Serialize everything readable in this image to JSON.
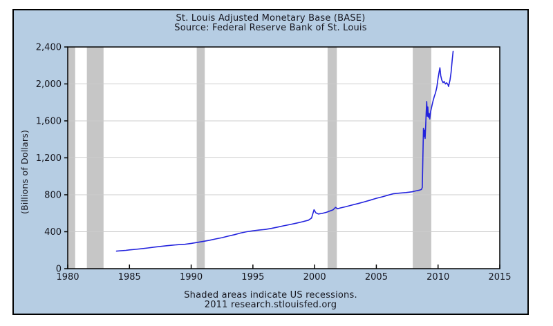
{
  "header": {
    "title_line1": "St. Louis Adjusted Monetary Base (BASE)",
    "title_line2": "Source: Federal Reserve Bank of St. Louis"
  },
  "axes": {
    "y_label": "(Billions of Dollars)"
  },
  "footer": {
    "line1": "Shaded areas indicate US recessions.",
    "line2": "2011 research.stlouisfed.org"
  },
  "colors": {
    "background": "#b6cde3",
    "plot_background": "#ffffff",
    "line": "#2222dd",
    "recession_band": "#c6c6c6",
    "gridline": "#cccccc",
    "text": "#16161e",
    "border": "#000000"
  },
  "chart_data": {
    "type": "line",
    "title": "St. Louis Adjusted Monetary Base (BASE)",
    "subtitle": "Source: Federal Reserve Bank of St. Louis",
    "xlabel": "",
    "ylabel": "(Billions of Dollars)",
    "xlim": [
      1980,
      2015
    ],
    "ylim": [
      0,
      2400
    ],
    "x_ticks": [
      1980,
      1985,
      1990,
      1995,
      2000,
      2005,
      2010,
      2015
    ],
    "x_tick_labels": [
      "1980",
      "1985",
      "1990",
      "1995",
      "2000",
      "2005",
      "2010",
      "2015"
    ],
    "y_ticks": [
      0,
      400,
      800,
      1200,
      1600,
      2000,
      2400
    ],
    "y_tick_labels": [
      "0",
      "400",
      "800",
      "1,200",
      "1,600",
      "2,000",
      "2,400"
    ],
    "grid": "horizontal",
    "legend": "none",
    "annotation": "Shaded areas indicate US recessions.",
    "recessions": [
      [
        1980.05,
        1980.6
      ],
      [
        1981.55,
        1982.9
      ],
      [
        1990.45,
        1991.1
      ],
      [
        2001.05,
        2001.8
      ],
      [
        2007.95,
        2009.45
      ]
    ],
    "series": [
      {
        "name": "St. Louis Adjusted Monetary Base",
        "points": [
          [
            1983.95,
            190
          ],
          [
            1984.3,
            194
          ],
          [
            1984.7,
            198
          ],
          [
            1985.0,
            203
          ],
          [
            1985.5,
            209
          ],
          [
            1986.0,
            216
          ],
          [
            1986.5,
            224
          ],
          [
            1987.0,
            233
          ],
          [
            1987.5,
            241
          ],
          [
            1988.0,
            248
          ],
          [
            1988.5,
            255
          ],
          [
            1989.0,
            260
          ],
          [
            1989.5,
            264
          ],
          [
            1990.0,
            274
          ],
          [
            1990.5,
            285
          ],
          [
            1991.0,
            296
          ],
          [
            1991.5,
            308
          ],
          [
            1992.0,
            322
          ],
          [
            1992.5,
            336
          ],
          [
            1993.0,
            352
          ],
          [
            1993.5,
            368
          ],
          [
            1994.0,
            386
          ],
          [
            1994.5,
            400
          ],
          [
            1995.0,
            410
          ],
          [
            1995.5,
            418
          ],
          [
            1996.0,
            425
          ],
          [
            1996.5,
            436
          ],
          [
            1997.0,
            450
          ],
          [
            1997.5,
            464
          ],
          [
            1998.0,
            478
          ],
          [
            1998.5,
            492
          ],
          [
            1999.0,
            508
          ],
          [
            1999.5,
            525
          ],
          [
            1999.75,
            548
          ],
          [
            1999.95,
            638
          ],
          [
            2000.1,
            605
          ],
          [
            2000.3,
            592
          ],
          [
            2000.6,
            598
          ],
          [
            2000.9,
            608
          ],
          [
            2001.2,
            622
          ],
          [
            2001.5,
            638
          ],
          [
            2001.7,
            664
          ],
          [
            2001.85,
            648
          ],
          [
            2002.1,
            658
          ],
          [
            2002.5,
            670
          ],
          [
            2003.0,
            688
          ],
          [
            2003.5,
            704
          ],
          [
            2004.0,
            722
          ],
          [
            2004.5,
            742
          ],
          [
            2005.0,
            762
          ],
          [
            2005.5,
            778
          ],
          [
            2006.0,
            798
          ],
          [
            2006.4,
            812
          ],
          [
            2006.9,
            818
          ],
          [
            2007.4,
            824
          ],
          [
            2007.9,
            832
          ],
          [
            2008.2,
            842
          ],
          [
            2008.5,
            850
          ],
          [
            2008.66,
            858
          ],
          [
            2008.72,
            880
          ],
          [
            2008.77,
            1180
          ],
          [
            2008.82,
            1520
          ],
          [
            2008.87,
            1430
          ],
          [
            2008.91,
            1500
          ],
          [
            2008.95,
            1410
          ],
          [
            2009.0,
            1560
          ],
          [
            2009.04,
            1700
          ],
          [
            2009.08,
            1810
          ],
          [
            2009.13,
            1650
          ],
          [
            2009.17,
            1750
          ],
          [
            2009.22,
            1640
          ],
          [
            2009.28,
            1680
          ],
          [
            2009.33,
            1620
          ],
          [
            2009.4,
            1700
          ],
          [
            2009.5,
            1762
          ],
          [
            2009.6,
            1820
          ],
          [
            2009.7,
            1868
          ],
          [
            2009.8,
            1905
          ],
          [
            2009.9,
            1962
          ],
          [
            2010.0,
            2060
          ],
          [
            2010.1,
            2140
          ],
          [
            2010.15,
            2175
          ],
          [
            2010.22,
            2090
          ],
          [
            2010.3,
            2042
          ],
          [
            2010.4,
            2015
          ],
          [
            2010.5,
            2026
          ],
          [
            2010.6,
            2000
          ],
          [
            2010.7,
            2012
          ],
          [
            2010.8,
            1994
          ],
          [
            2010.85,
            1972
          ],
          [
            2010.9,
            2002
          ],
          [
            2010.97,
            2042
          ],
          [
            2011.05,
            2120
          ],
          [
            2011.15,
            2268
          ],
          [
            2011.22,
            2352
          ]
        ]
      }
    ]
  }
}
